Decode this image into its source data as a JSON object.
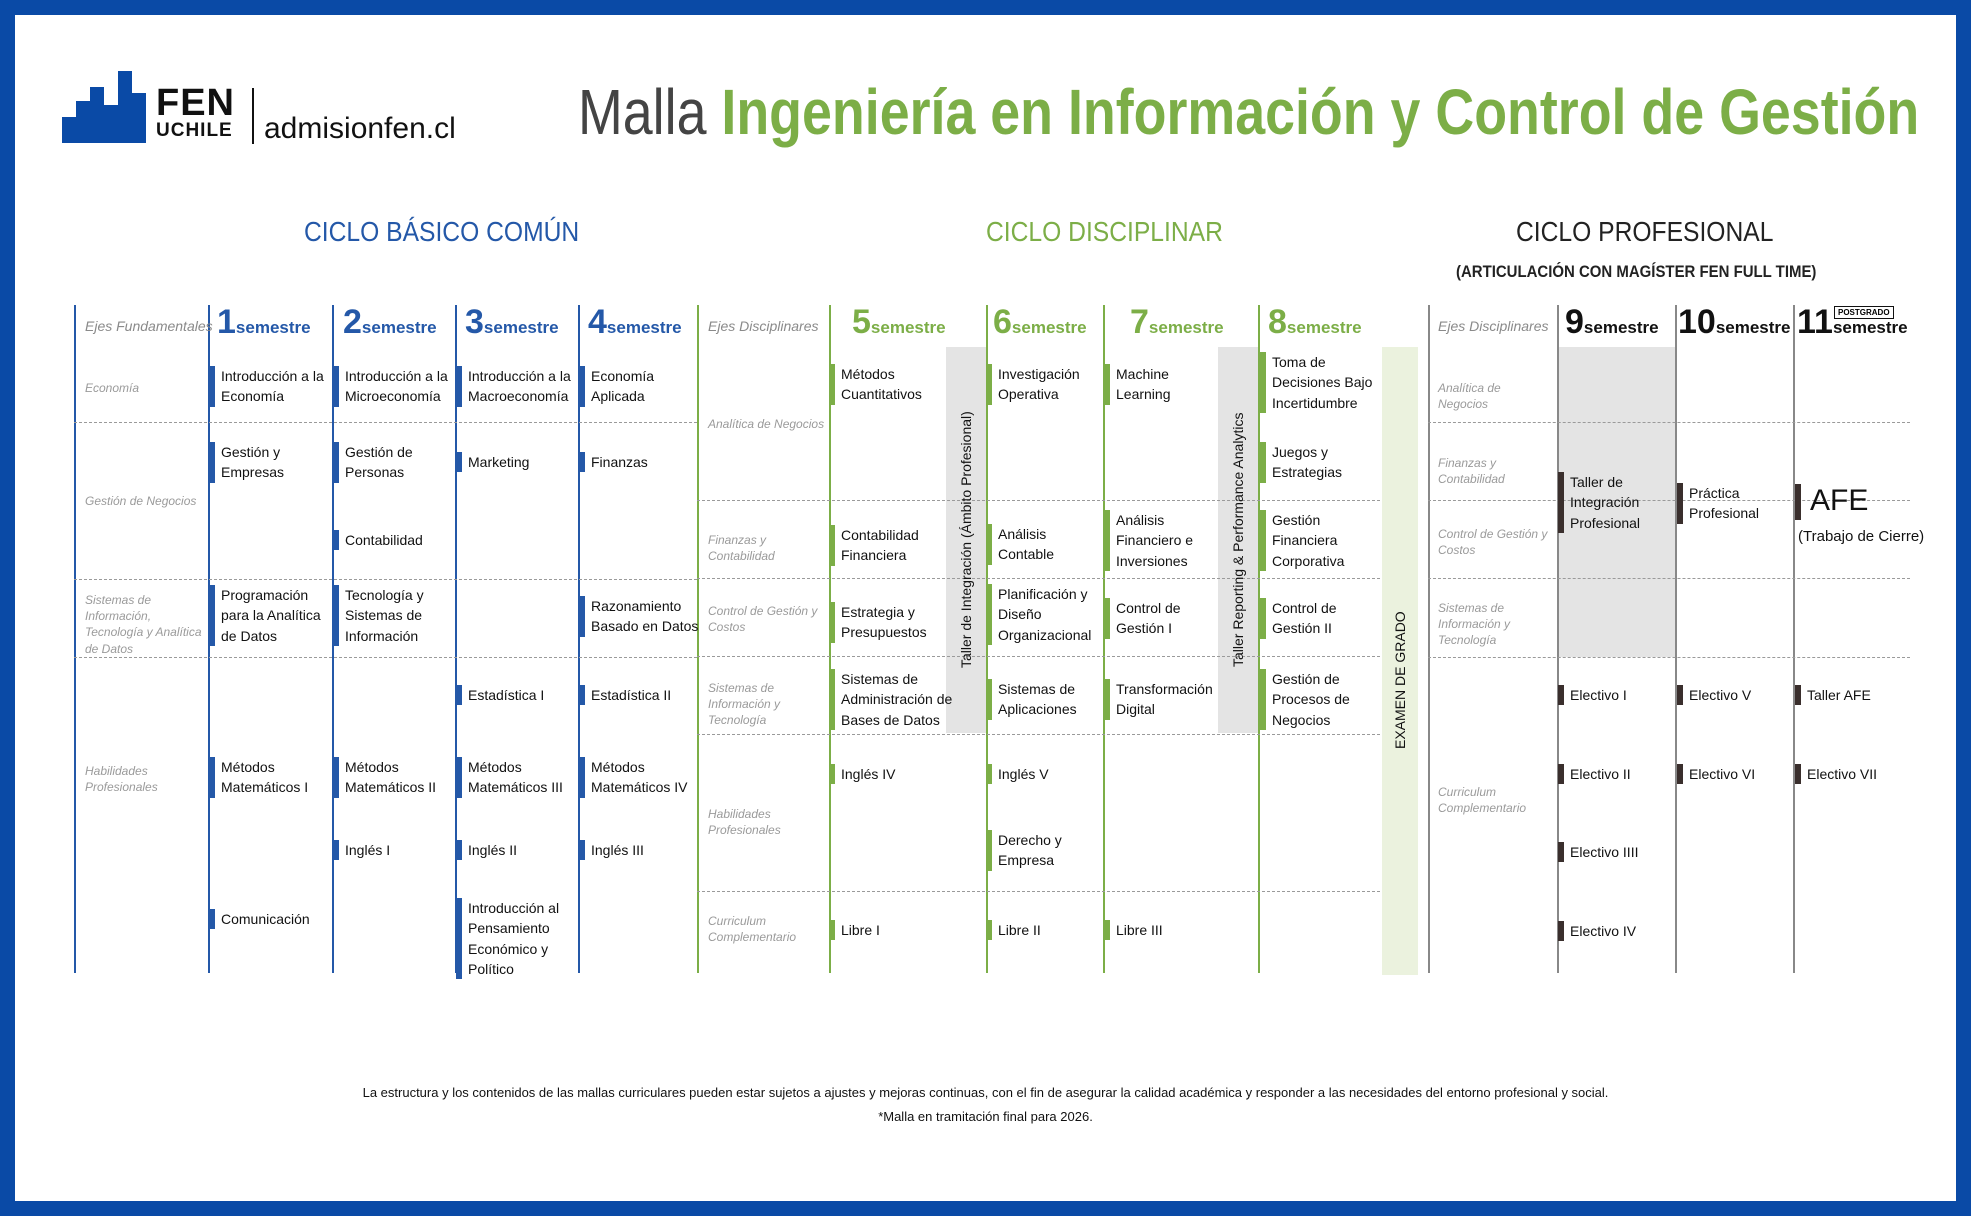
{
  "header": {
    "logo_fen": "FEN",
    "logo_uchile": "UCHILE",
    "site": "admisionfen.cl",
    "title_prefix": "Malla ",
    "title_main": "Ingeniería en Información y Control de Gestión"
  },
  "cycles": {
    "basic": "CICLO BÁSICO COMÚN",
    "disciplinary": "CICLO DISCIPLINAR",
    "professional": "CICLO PROFESIONAL",
    "professional_sub": "(ARTICULACIÓN CON MAGÍSTER FEN FULL TIME)"
  },
  "axes_fundamental": {
    "head": "Ejes Fundamentales",
    "items": [
      "Economía",
      "Gestión de Negocios",
      "Sistemas de Información, Tecnología y Analítica de Datos",
      "Habilidades Profesionales"
    ]
  },
  "axes_disciplinary": {
    "head": "Ejes Disciplinares",
    "items": [
      "Analítica de Negocios",
      "Finanzas y Contabilidad",
      "Control de Gestión y Costos",
      "Sistemas de Información y Tecnología",
      "Habilidades Profesionales",
      "Curriculum Complementario"
    ]
  },
  "axes_professional": {
    "head": "Ejes Disciplinares",
    "items": [
      "Analítica de Negocios",
      "Finanzas y Contabilidad",
      "Control de Gestión y Costos",
      "Sistemas de Información y Tecnología",
      "Curriculum Complementario"
    ]
  },
  "semester_word": "semestre",
  "postgrado": "POSTGRADO",
  "semesters": [
    {
      "num": "1",
      "courses": [
        "Introducción a la Economía",
        "Gestión y Empresas",
        "Programación para la Analítica de Datos",
        "Métodos Matemáticos I",
        "Comunicación"
      ]
    },
    {
      "num": "2",
      "courses": [
        "Introducción a la Microeconomía",
        "Gestión de Personas",
        "Contabilidad",
        "Tecnología y Sistemas de Información",
        "Métodos Matemáticos II",
        "Inglés I"
      ]
    },
    {
      "num": "3",
      "courses": [
        "Introducción a la Macroeconomía",
        "Marketing",
        "Estadística I",
        "Métodos Matemáticos III",
        "Inglés II",
        "Introducción al Pensamiento Económico y Político"
      ]
    },
    {
      "num": "4",
      "courses": [
        "Economía Aplicada",
        "Finanzas",
        "Razonamiento Basado en Datos",
        "Estadística II",
        "Métodos Matemáticos IV",
        "Inglés III"
      ]
    },
    {
      "num": "5",
      "courses": [
        "Métodos Cuantitativos",
        "Contabilidad Financiera",
        "Estrategia y Presupuestos",
        "Sistemas de Administración de Bases de Datos",
        "Inglés IV",
        "Libre I"
      ]
    },
    {
      "num": "6",
      "courses": [
        "Investigación Operativa",
        "Análisis Contable",
        "Planificación y Diseño Organizacional",
        "Sistemas de Aplicaciones",
        "Inglés V",
        "Derecho y Empresa",
        "Libre II"
      ]
    },
    {
      "num": "7",
      "courses": [
        "Machine Learning",
        "Análisis Financiero e Inversiones",
        "Control de Gestión I",
        "Transformación Digital",
        "Libre III"
      ]
    },
    {
      "num": "8",
      "courses": [
        "Toma de Decisiones Bajo Incertidumbre",
        "Juegos y Estrategias",
        "Gestión Financiera Corporativa",
        "Control de Gestión II",
        "Gestión de Procesos de Negocios"
      ]
    },
    {
      "num": "9",
      "courses": [
        "Taller de Integración Profesional",
        "Electivo I",
        "Electivo II",
        "Electivo IIII",
        "Electivo IV"
      ]
    },
    {
      "num": "10",
      "courses": [
        "Práctica Profesional",
        "Electivo V",
        "Electivo VI"
      ]
    },
    {
      "num": "11",
      "courses": [
        "AFE",
        "(Trabajo de Cierre)",
        "Taller AFE",
        "Electivo VII"
      ]
    }
  ],
  "vertical_labels": {
    "taller_integracion": "Taller de Integración (Ámbito Profesional)",
    "taller_reporting": "Taller Reporting & Performance Analytics",
    "examen": "EXAMEN DE GRADO"
  },
  "colors": {
    "blue": "#2458a8",
    "green": "#7cae47",
    "dark": "#3a2f2d",
    "band_gray": "#e4e4e4",
    "band_green": "#ebf2de"
  },
  "footnotes": [
    "La estructura y los contenidos de las mallas curriculares pueden estar sujetos a ajustes y mejoras continuas, con el fin de asegurar la calidad académica y responder a las necesidades del entorno profesional y social.",
    "*Malla en tramitación final para 2026."
  ]
}
